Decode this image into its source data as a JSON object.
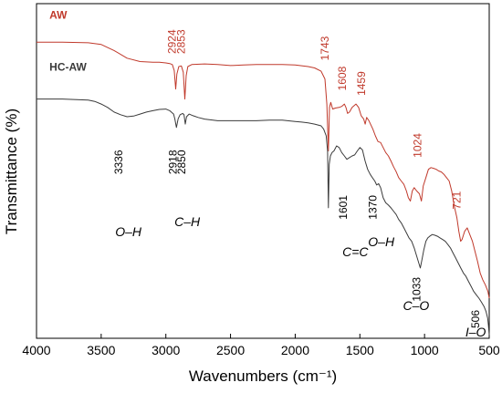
{
  "colors": {
    "aw": "#c0392b",
    "hc_aw": "#3a3a3a",
    "axis": "#000000"
  },
  "chart_data": {
    "type": "line",
    "title": "",
    "xlabel": "Wavenumbers (cm⁻¹)",
    "ylabel": "Transmittance (%)",
    "xlim": [
      4000,
      500
    ],
    "ylim": [
      0,
      1
    ],
    "x_reversed": true,
    "y_ticks_shown": false,
    "grid": false,
    "xticks": [
      4000,
      3500,
      3000,
      2500,
      2000,
      1500,
      1000,
      500
    ],
    "series": [
      {
        "name": "AW",
        "color": "#c0392b",
        "x": [
          4000,
          3800,
          3600,
          3500,
          3400,
          3300,
          3200,
          3100,
          3050,
          3000,
          2970,
          2950,
          2935,
          2924,
          2915,
          2900,
          2880,
          2865,
          2853,
          2843,
          2830,
          2800,
          2700,
          2600,
          2500,
          2400,
          2300,
          2200,
          2100,
          2000,
          1900,
          1850,
          1800,
          1770,
          1755,
          1743,
          1735,
          1725,
          1710,
          1690,
          1660,
          1640,
          1620,
          1608,
          1595,
          1580,
          1560,
          1530,
          1510,
          1490,
          1470,
          1459,
          1448,
          1430,
          1400,
          1380,
          1360,
          1340,
          1320,
          1300,
          1280,
          1260,
          1240,
          1220,
          1200,
          1180,
          1160,
          1140,
          1125,
          1110,
          1095,
          1080,
          1060,
          1040,
          1024,
          1010,
          990,
          970,
          950,
          930,
          910,
          890,
          870,
          850,
          830,
          810,
          790,
          770,
          750,
          735,
          721,
          710,
          690,
          670,
          650,
          630,
          610,
          590,
          570,
          550,
          530,
          510,
          500
        ],
        "y": [
          0.885,
          0.885,
          0.883,
          0.878,
          0.86,
          0.837,
          0.827,
          0.825,
          0.825,
          0.823,
          0.821,
          0.818,
          0.8,
          0.745,
          0.79,
          0.812,
          0.814,
          0.795,
          0.715,
          0.785,
          0.812,
          0.818,
          0.82,
          0.818,
          0.815,
          0.817,
          0.818,
          0.818,
          0.818,
          0.817,
          0.812,
          0.808,
          0.798,
          0.775,
          0.7,
          0.56,
          0.69,
          0.705,
          0.685,
          0.688,
          0.69,
          0.693,
          0.7,
          0.69,
          0.672,
          0.676,
          0.69,
          0.7,
          0.69,
          0.665,
          0.655,
          0.64,
          0.66,
          0.65,
          0.625,
          0.605,
          0.588,
          0.585,
          0.57,
          0.555,
          0.545,
          0.53,
          0.513,
          0.498,
          0.48,
          0.47,
          0.46,
          0.44,
          0.42,
          0.41,
          0.44,
          0.45,
          0.44,
          0.432,
          0.41,
          0.455,
          0.48,
          0.505,
          0.51,
          0.508,
          0.505,
          0.5,
          0.497,
          0.49,
          0.48,
          0.47,
          0.44,
          0.395,
          0.36,
          0.32,
          0.29,
          0.295,
          0.32,
          0.33,
          0.31,
          0.29,
          0.26,
          0.23,
          0.195,
          0.175,
          0.16,
          0.14,
          0.12
        ]
      },
      {
        "name": "HC-AW",
        "color": "#3a3a3a",
        "x": [
          4000,
          3800,
          3600,
          3550,
          3500,
          3450,
          3400,
          3350,
          3300,
          3250,
          3200,
          3150,
          3100,
          3050,
          3000,
          2970,
          2940,
          2930,
          2918,
          2905,
          2890,
          2870,
          2860,
          2850,
          2840,
          2820,
          2790,
          2750,
          2700,
          2600,
          2500,
          2400,
          2300,
          2200,
          2100,
          2000,
          1950,
          1900,
          1850,
          1800,
          1780,
          1760,
          1750,
          1743,
          1737,
          1728,
          1715,
          1700,
          1680,
          1660,
          1640,
          1620,
          1601,
          1580,
          1560,
          1540,
          1520,
          1500,
          1480,
          1460,
          1440,
          1420,
          1400,
          1385,
          1370,
          1355,
          1340,
          1320,
          1300,
          1280,
          1260,
          1240,
          1220,
          1200,
          1180,
          1160,
          1140,
          1120,
          1100,
          1080,
          1060,
          1045,
          1033,
          1020,
          1005,
          990,
          975,
          960,
          940,
          920,
          900,
          880,
          860,
          840,
          820,
          800,
          780,
          760,
          740,
          720,
          700,
          680,
          660,
          640,
          620,
          600,
          580,
          560,
          540,
          525,
          512,
          506,
          500
        ],
        "y": [
          0.715,
          0.715,
          0.712,
          0.708,
          0.7,
          0.69,
          0.676,
          0.668,
          0.662,
          0.664,
          0.67,
          0.676,
          0.68,
          0.684,
          0.685,
          0.68,
          0.67,
          0.655,
          0.63,
          0.656,
          0.668,
          0.672,
          0.668,
          0.64,
          0.662,
          0.67,
          0.665,
          0.66,
          0.655,
          0.65,
          0.65,
          0.65,
          0.65,
          0.652,
          0.652,
          0.648,
          0.646,
          0.644,
          0.64,
          0.635,
          0.625,
          0.605,
          0.56,
          0.39,
          0.52,
          0.545,
          0.555,
          0.56,
          0.575,
          0.57,
          0.555,
          0.545,
          0.535,
          0.54,
          0.545,
          0.548,
          0.56,
          0.57,
          0.563,
          0.53,
          0.505,
          0.49,
          0.478,
          0.47,
          0.458,
          0.462,
          0.45,
          0.42,
          0.405,
          0.398,
          0.39,
          0.38,
          0.37,
          0.355,
          0.345,
          0.33,
          0.315,
          0.3,
          0.29,
          0.27,
          0.245,
          0.225,
          0.21,
          0.235,
          0.265,
          0.29,
          0.3,
          0.305,
          0.31,
          0.308,
          0.305,
          0.3,
          0.295,
          0.29,
          0.28,
          0.27,
          0.255,
          0.24,
          0.225,
          0.21,
          0.195,
          0.185,
          0.17,
          0.155,
          0.14,
          0.13,
          0.12,
          0.108,
          0.095,
          0.08,
          0.06,
          0.04,
          0.01
        ]
      }
    ],
    "series_labels": [
      {
        "text": "AW",
        "series": "AW",
        "x": 3900,
        "y": 0.955
      },
      {
        "text": "HC-AW",
        "series": "HC-AW",
        "x": 3900,
        "y": 0.8
      }
    ],
    "annotations": [
      {
        "text": "2924",
        "x": 2924,
        "y": 0.85,
        "rotate": -90,
        "color": "#c0392b"
      },
      {
        "text": "2853",
        "x": 2853,
        "y": 0.85,
        "rotate": -90,
        "color": "#c0392b"
      },
      {
        "text": "1743",
        "x": 1743,
        "y": 0.83,
        "rotate": -90,
        "color": "#c0392b"
      },
      {
        "text": "1608",
        "x": 1608,
        "y": 0.74,
        "rotate": -90,
        "color": "#c0392b"
      },
      {
        "text": "1459",
        "x": 1459,
        "y": 0.725,
        "rotate": -90,
        "color": "#c0392b"
      },
      {
        "text": "1024",
        "x": 1024,
        "y": 0.54,
        "rotate": -90,
        "color": "#c0392b"
      },
      {
        "text": "721",
        "x": 721,
        "y": 0.385,
        "rotate": -90,
        "color": "#c0392b"
      },
      {
        "text": "3336",
        "x": 3336,
        "y": 0.49,
        "rotate": -90,
        "color": "#000000"
      },
      {
        "text": "2918",
        "x": 2918,
        "y": 0.49,
        "rotate": -90,
        "color": "#000000"
      },
      {
        "text": "2850",
        "x": 2850,
        "y": 0.49,
        "rotate": -90,
        "color": "#000000"
      },
      {
        "text": "1601",
        "x": 1601,
        "y": 0.355,
        "rotate": -90,
        "color": "#000000"
      },
      {
        "text": "1370",
        "x": 1370,
        "y": 0.355,
        "rotate": -90,
        "color": "#000000"
      },
      {
        "text": "1033",
        "x": 1033,
        "y": 0.11,
        "rotate": -90,
        "color": "#000000"
      },
      {
        "text": "506",
        "x": 576,
        "y": 0.03,
        "rotate": -90,
        "color": "#000000"
      },
      {
        "text": "O–H",
        "x": 3290,
        "y": 0.305,
        "rotate": 0,
        "color": "#000000"
      },
      {
        "text": "C–H",
        "x": 2835,
        "y": 0.335,
        "rotate": 0,
        "color": "#000000"
      },
      {
        "text": "C=C",
        "x": 1535,
        "y": 0.245,
        "rotate": 0,
        "color": "#000000"
      },
      {
        "text": "O–H",
        "x": 1335,
        "y": 0.275,
        "rotate": 0,
        "color": "#000000"
      },
      {
        "text": "C–O",
        "x": 1065,
        "y": 0.085,
        "rotate": 0,
        "color": "#000000"
      },
      {
        "text": "I–O",
        "x": 605,
        "y": 0.005,
        "rotate": 0,
        "color": "#000000"
      }
    ]
  }
}
